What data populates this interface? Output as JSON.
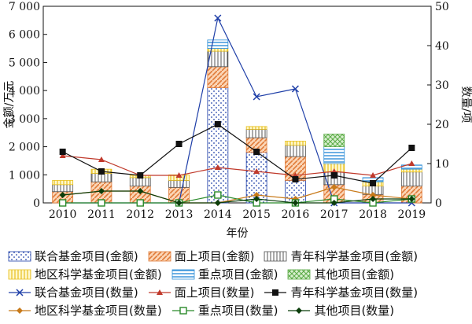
{
  "chart_data": {
    "type": "bar",
    "x": [
      "2010",
      "2011",
      "2012",
      "2013",
      "2014",
      "2015",
      "2016",
      "2017",
      "2018",
      "2019"
    ],
    "xlabel": "年份",
    "ylabel_left": "金额/万元",
    "ylabel_right": "数量/项",
    "ylim_left": [
      0,
      7000
    ],
    "ylim_right": [
      0,
      50
    ],
    "yticks_left": [
      "0",
      "1 000",
      "2 000",
      "3 000",
      "4 000",
      "5 000",
      "6 000",
      "7 000"
    ],
    "yticks_right": [
      "0",
      "10",
      "20",
      "30",
      "40",
      "50"
    ],
    "grid": false,
    "legend_position": "bottom",
    "bar_series": [
      {
        "name": "联合基金项目(金额)",
        "values": [
          0,
          0,
          0,
          0,
          4100,
          1800,
          800,
          0,
          0,
          0
        ],
        "color": "#1f3fa8"
      },
      {
        "name": "面上项目(金额)",
        "values": [
          400,
          750,
          600,
          550,
          750,
          520,
          850,
          650,
          300,
          600
        ],
        "color": "#e07b39"
      },
      {
        "name": "青年科学基金项目(金额)",
        "values": [
          250,
          300,
          300,
          250,
          550,
          300,
          400,
          450,
          300,
          500
        ],
        "color": "#555555"
      },
      {
        "name": "地区科学基金项目(金额)",
        "values": [
          150,
          150,
          80,
          200,
          100,
          100,
          150,
          300,
          150,
          100
        ],
        "color": "#e8c020"
      },
      {
        "name": "重点项目(金额)",
        "values": [
          0,
          0,
          0,
          0,
          300,
          0,
          0,
          600,
          150,
          150
        ],
        "color": "#2f8fd8"
      },
      {
        "name": "其他项目(金额)",
        "values": [
          0,
          0,
          0,
          0,
          0,
          0,
          0,
          450,
          0,
          0
        ],
        "color": "#5aaa46"
      }
    ],
    "line_series": [
      {
        "name": "联合基金项目(数量)",
        "values": [
          0,
          0,
          0,
          0,
          47,
          27,
          29,
          0,
          0,
          0
        ],
        "color": "#1f3fa8",
        "marker": "x"
      },
      {
        "name": "面上项目(数量)",
        "values": [
          12,
          11,
          7,
          7,
          9,
          8,
          7,
          8,
          7,
          10
        ],
        "color": "#c0392b",
        "marker": "triangle"
      },
      {
        "name": "青年科学基金项目(数量)",
        "values": [
          13,
          8,
          7,
          15,
          20,
          13,
          6,
          7,
          5,
          14
        ],
        "color": "#111111",
        "marker": "square"
      },
      {
        "name": "地区科学基金项目(数量)",
        "values": [
          2,
          3,
          3,
          0,
          0,
          2,
          1,
          4,
          2,
          1
        ],
        "color": "#c87a1a",
        "marker": "diamond"
      },
      {
        "name": "重点项目(数量)",
        "values": [
          0,
          0,
          0,
          0,
          2,
          0,
          0,
          1,
          0,
          1
        ],
        "color": "#2a8a2a",
        "marker": "hsquare"
      },
      {
        "name": "其他项目(数量)",
        "values": [
          2,
          3,
          3,
          0,
          0,
          1,
          0,
          0,
          1,
          1
        ],
        "color": "#0b3d0b",
        "marker": "diamond"
      }
    ]
  }
}
